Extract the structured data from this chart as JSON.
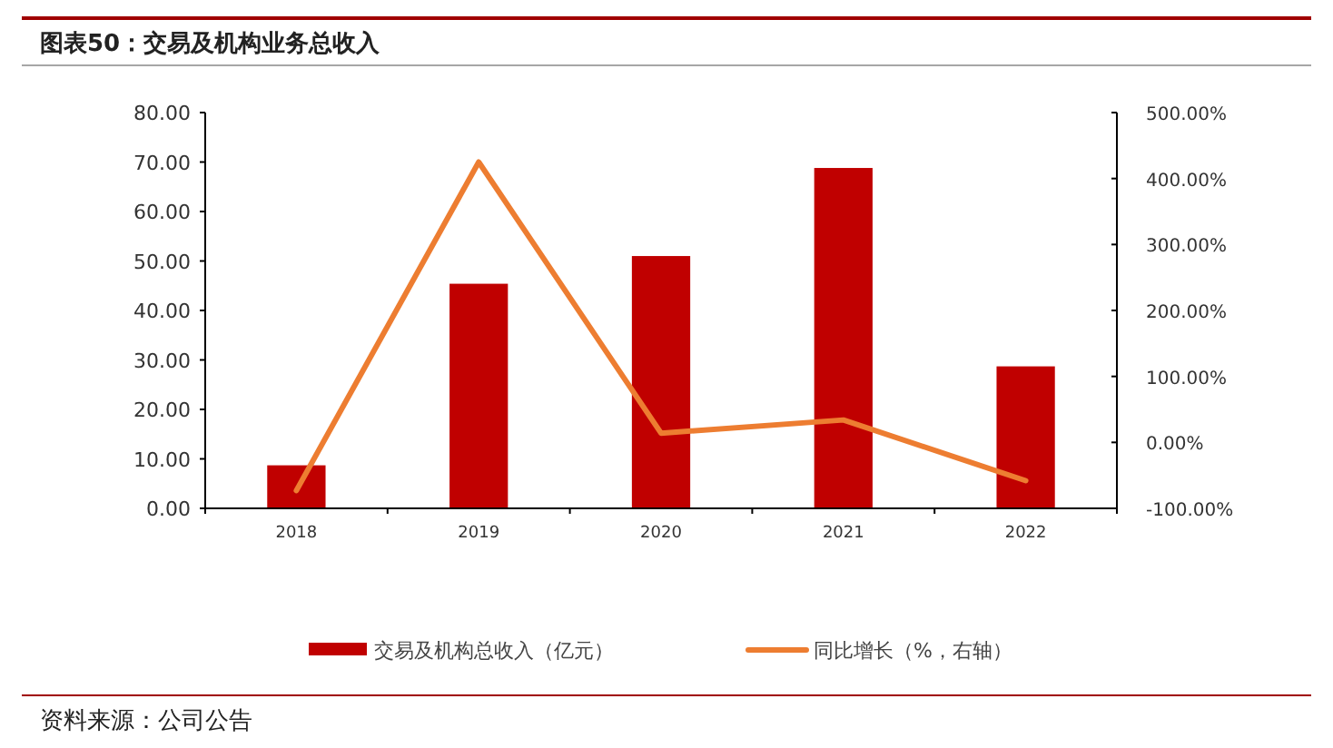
{
  "chart_data": {
    "type": "bar",
    "title": "图表50：交易及机构业务总收入",
    "categories": [
      "2018",
      "2019",
      "2020",
      "2021",
      "2022"
    ],
    "series": [
      {
        "name": "交易及机构总收入（亿元）",
        "color": "#c00000",
        "values": [
          8.7,
          45.4,
          51.0,
          68.8,
          28.7
        ]
      },
      {
        "name": "同比增长（%，右轴）",
        "type": "line",
        "axis": "y2",
        "color": "#ed7d31",
        "values": [
          -73,
          425,
          14,
          34,
          -58
        ]
      }
    ],
    "ylim": [
      0,
      80
    ],
    "yticks": [
      {
        "value": 0,
        "label": "0.00"
      },
      {
        "value": 10,
        "label": "10.00"
      },
      {
        "value": 20,
        "label": "20.00"
      },
      {
        "value": 30,
        "label": "30.00"
      },
      {
        "value": 40,
        "label": "40.00"
      },
      {
        "value": 50,
        "label": "50.00"
      },
      {
        "value": 60,
        "label": "60.00"
      },
      {
        "value": 70,
        "label": "70.00"
      },
      {
        "value": 80,
        "label": "80.00"
      }
    ],
    "y2lim": [
      -100,
      500
    ],
    "y2ticks": [
      {
        "value": -100,
        "label": "-100.00%"
      },
      {
        "value": 0,
        "label": "0.00%"
      },
      {
        "value": 100,
        "label": "100.00%"
      },
      {
        "value": 200,
        "label": "200.00%"
      },
      {
        "value": 300,
        "label": "300.00%"
      },
      {
        "value": 400,
        "label": "400.00%"
      },
      {
        "value": 500,
        "label": "500.00%"
      }
    ],
    "legend": "bottom",
    "grid": false,
    "annotations": [
      "资料来源：公司公告"
    ]
  }
}
